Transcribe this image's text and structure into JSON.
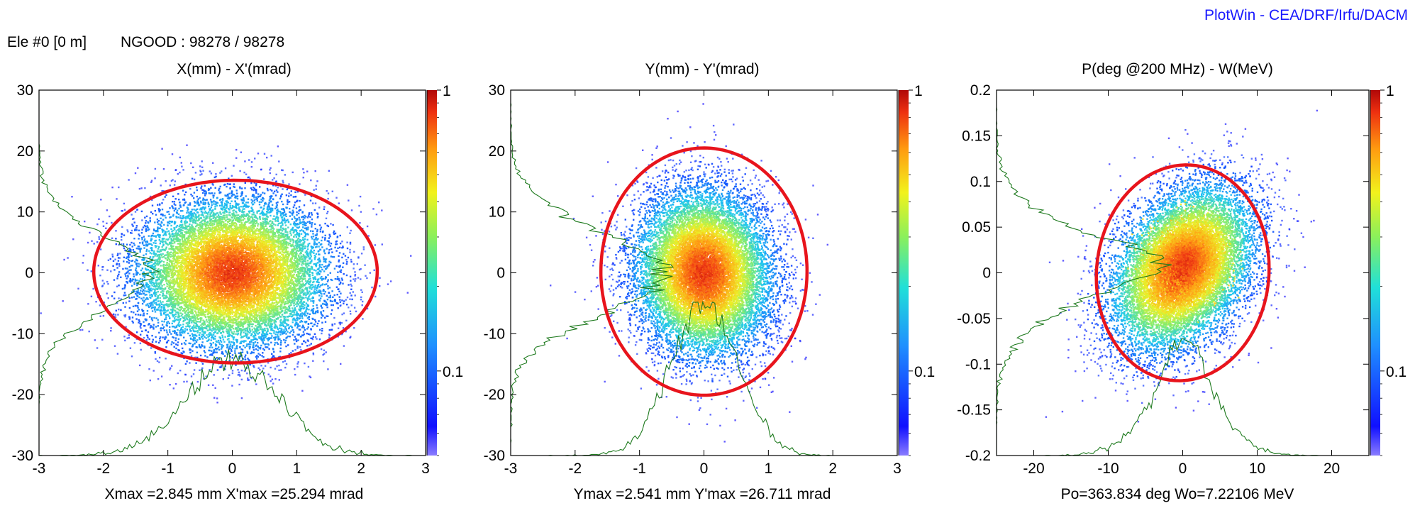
{
  "header": {
    "watermark": "PlotWin - CEA/DRF/Irfu/DACM",
    "element_label": "Ele #0 [0 m]",
    "ngood": "NGOOD : 98278 / 98278"
  },
  "colors": {
    "watermark": "#1a1aff",
    "ellipse": "#e8141c",
    "profile": "#1e7a1e",
    "axis": "#000000",
    "background": "#ffffff"
  },
  "chart_data": [
    {
      "type": "scatter",
      "title": "X(mm) - X'(mrad)",
      "xlabel": "Xmax =2.845 mm  X'max =25.294 mrad",
      "xlim": [
        -3,
        3
      ],
      "ylim": [
        -30,
        30
      ],
      "xticks": [
        -3,
        -2,
        -1,
        0,
        1,
        2,
        3
      ],
      "yticks": [
        -30,
        -20,
        -10,
        0,
        10,
        20,
        30
      ],
      "xtick_labels": [
        "-3",
        "-2",
        "-1",
        "0",
        "1",
        "2",
        "3"
      ],
      "ytick_labels": [
        "-30",
        "-20",
        "-10",
        "0",
        "10",
        "20",
        "30"
      ],
      "colorbar": {
        "scale": "log",
        "range": [
          0.05,
          1
        ],
        "labels": [
          "1",
          "0.1"
        ],
        "label_values": [
          1,
          0.1
        ]
      },
      "ellipse": {
        "cx": 0.05,
        "cy": 0.2,
        "rx": 2.2,
        "ry": 15.0,
        "angle_deg": -1
      },
      "distribution": {
        "sx": 0.72,
        "sy": 6.0,
        "rho": 0.0,
        "bias_x": 0.0,
        "bias_y": 0.0,
        "count": 14000
      },
      "profiles": {
        "x_peak_frac": 0.29,
        "y_peak_frac": 0.31
      }
    },
    {
      "type": "scatter",
      "title": "Y(mm) - Y'(mrad)",
      "xlabel": "Ymax =2.541 mm  Y'max =26.711 mrad",
      "xlim": [
        -3,
        3
      ],
      "ylim": [
        -30,
        30
      ],
      "xticks": [
        -3,
        -2,
        -1,
        0,
        1,
        2,
        3
      ],
      "yticks": [
        -30,
        -20,
        -10,
        0,
        10,
        20,
        30
      ],
      "xtick_labels": [
        "-3",
        "-2",
        "-1",
        "0",
        "1",
        "2",
        "3"
      ],
      "ytick_labels": [
        "-30",
        "-20",
        "-10",
        "0",
        "10",
        "20",
        "30"
      ],
      "colorbar": {
        "scale": "log",
        "range": [
          0.05,
          1
        ],
        "labels": [
          "1",
          "0.1"
        ],
        "label_values": [
          1,
          0.1
        ]
      },
      "ellipse": {
        "cx": 0.0,
        "cy": 0.2,
        "rx": 1.6,
        "ry": 20.3,
        "angle_deg": -2
      },
      "distribution": {
        "sx": 0.52,
        "sy": 6.7,
        "rho": -0.05,
        "bias_x": 0.0,
        "bias_y": 0.0,
        "count": 14000
      },
      "profiles": {
        "x_peak_frac": 0.42,
        "y_peak_frac": 0.42
      }
    },
    {
      "type": "scatter",
      "title": "P(deg @200 MHz) - W(MeV)",
      "xlabel": "Po=363.834 deg  Wo=7.22106 MeV",
      "xlim": [
        -25,
        25
      ],
      "ylim": [
        -0.2,
        0.2
      ],
      "xticks": [
        -20,
        -10,
        0,
        10,
        20
      ],
      "yticks": [
        -0.2,
        -0.15,
        -0.1,
        -0.05,
        0,
        0.05,
        0.1,
        0.15,
        0.2
      ],
      "xtick_labels": [
        "-20",
        "-10",
        "0",
        "10",
        "20"
      ],
      "ytick_labels": [
        "-0.2",
        "-0.15",
        "-0.1",
        "-0.05",
        "0",
        "0.05",
        "0.1",
        "0.15",
        "0.2"
      ],
      "colorbar": {
        "scale": "log",
        "range": [
          0.05,
          1
        ],
        "labels": [
          "1",
          "0.1"
        ],
        "label_values": [
          1,
          0.1
        ]
      },
      "ellipse": {
        "cx": 0.0,
        "cy": 0.0,
        "rx": 11.6,
        "ry": 0.118,
        "angle_deg": 0,
        "shear": 0.005
      },
      "distribution": {
        "sx": 4.8,
        "sy": 0.045,
        "rho": 0.35,
        "bias_x": 0.0,
        "bias_y": 0.005,
        "count": 15000,
        "core": {
          "x": 0.5,
          "y": 0.012,
          "sx": 2.2,
          "sy": 0.02,
          "weight": 0.18
        }
      },
      "profiles": {
        "x_peak_frac": 0.32,
        "y_peak_frac": 0.47
      }
    }
  ]
}
